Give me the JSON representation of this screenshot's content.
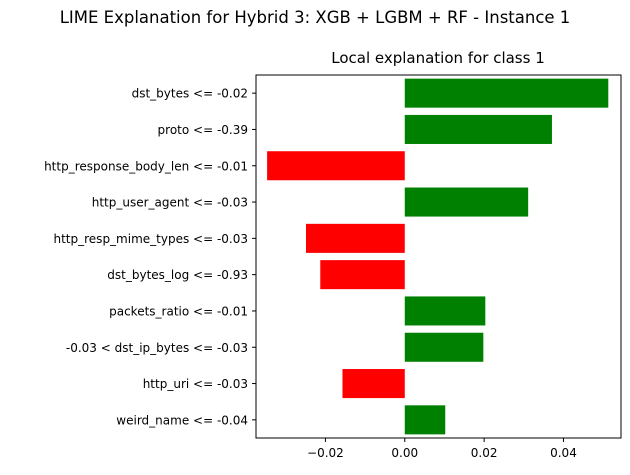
{
  "figure": {
    "suptitle": "LIME Explanation for Hybrid 3: XGB + LGBM + RF - Instance 1"
  },
  "chart_data": {
    "type": "bar",
    "orientation": "horizontal",
    "title": "Local explanation for class 1",
    "xlabel": "",
    "ylabel": "",
    "xlim": [
      -0.0375,
      0.0545
    ],
    "x_ticks": [
      -0.02,
      0.0,
      0.02,
      0.04
    ],
    "x_tick_labels": [
      "−0.02",
      "0.00",
      "0.02",
      "0.04"
    ],
    "grid": false,
    "legend": "none",
    "positive_color": "#008000",
    "negative_color": "#ff0000",
    "categories": [
      "dst_bytes <= -0.02",
      "proto <= -0.39",
      "http_response_body_len <= -0.01",
      "http_user_agent <= -0.03",
      "http_resp_mime_types <= -0.03",
      "dst_bytes_log <= -0.93",
      "packets_ratio <= -0.01",
      "-0.03 < dst_ip_bytes <= -0.03",
      "http_uri <= -0.03",
      "weird_name <= -0.04"
    ],
    "values": [
      0.0513,
      0.0371,
      -0.0347,
      0.0311,
      -0.0249,
      -0.0213,
      0.0203,
      0.0198,
      -0.0157,
      0.0102
    ]
  }
}
